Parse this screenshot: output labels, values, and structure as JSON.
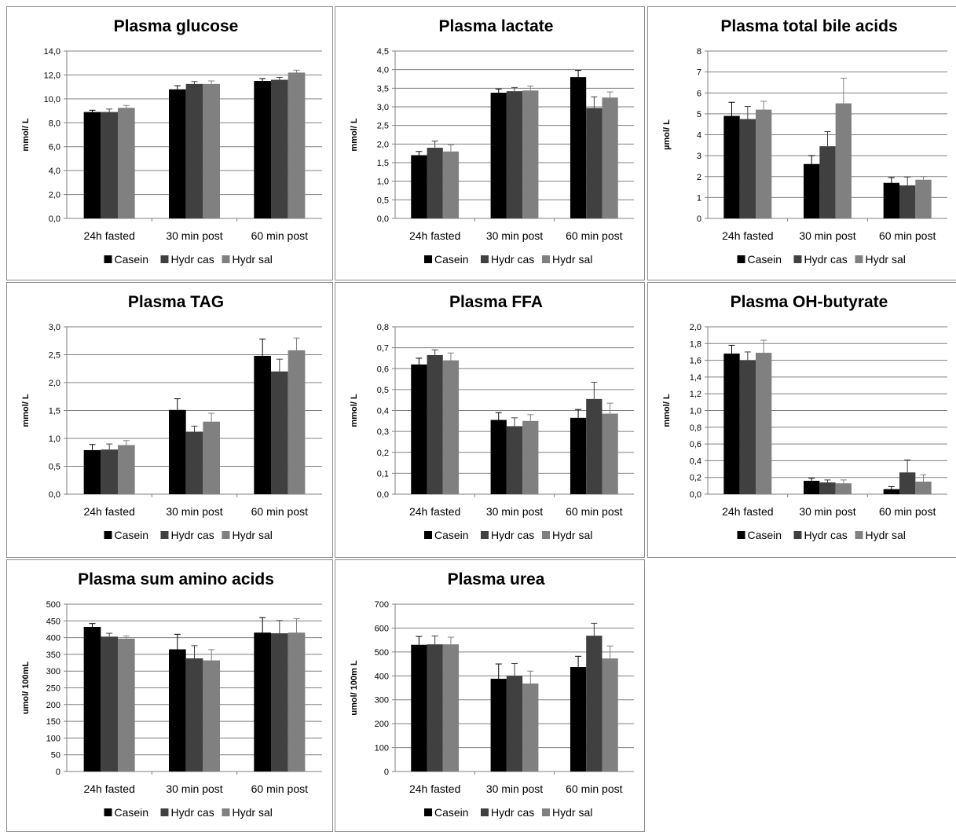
{
  "legend": [
    "Casein",
    "Hydr cas",
    "Hydr sal"
  ],
  "colors": [
    "#000000",
    "#404040",
    "#808080"
  ],
  "chart_data": [
    {
      "type": "bar",
      "title": "Plasma glucose",
      "ylabel": "mmol/ L",
      "categories": [
        "24h fasted",
        "30 min post",
        "60 min post"
      ],
      "ylim": [
        0,
        14
      ],
      "yticks": [
        "0,0",
        "2,0",
        "4,0",
        "6,0",
        "8,0",
        "10,0",
        "12,0",
        "14,0"
      ],
      "series": [
        {
          "name": "Casein",
          "values": [
            8.9,
            10.8,
            11.5
          ],
          "errors": [
            0.15,
            0.3,
            0.2
          ]
        },
        {
          "name": "Hydr cas",
          "values": [
            8.9,
            11.25,
            11.6
          ],
          "errors": [
            0.25,
            0.2,
            0.2
          ]
        },
        {
          "name": "Hydr sal",
          "values": [
            9.25,
            11.25,
            12.2
          ],
          "errors": [
            0.2,
            0.25,
            0.2
          ]
        }
      ]
    },
    {
      "type": "bar",
      "title": "Plasma lactate",
      "ylabel": "mmol/ L",
      "categories": [
        "24h fasted",
        "30 min post",
        "60 min post"
      ],
      "ylim": [
        0,
        4.5
      ],
      "yticks": [
        "0,0",
        "0,5",
        "1,0",
        "1,5",
        "2,0",
        "2,5",
        "3,0",
        "3,5",
        "4,0",
        "4,5"
      ],
      "series": [
        {
          "name": "Casein",
          "values": [
            1.7,
            3.38,
            3.8
          ],
          "errors": [
            0.1,
            0.1,
            0.18
          ]
        },
        {
          "name": "Hydr cas",
          "values": [
            1.9,
            3.42,
            2.97
          ],
          "errors": [
            0.18,
            0.1,
            0.3
          ]
        },
        {
          "name": "Hydr sal",
          "values": [
            1.8,
            3.44,
            3.25
          ],
          "errors": [
            0.18,
            0.12,
            0.15
          ]
        }
      ]
    },
    {
      "type": "bar",
      "title": "Plasma total bile acids",
      "ylabel": "µmol/ L",
      "categories": [
        "24h fasted",
        "30 min post",
        "60 min post"
      ],
      "ylim": [
        0,
        8
      ],
      "yticks": [
        "0",
        "1",
        "2",
        "3",
        "4",
        "5",
        "6",
        "7",
        "8"
      ],
      "series": [
        {
          "name": "Casein",
          "values": [
            4.9,
            2.6,
            1.7
          ],
          "errors": [
            0.65,
            0.4,
            0.25
          ]
        },
        {
          "name": "Hydr cas",
          "values": [
            4.75,
            3.45,
            1.58
          ],
          "errors": [
            0.6,
            0.7,
            0.4
          ]
        },
        {
          "name": "Hydr sal",
          "values": [
            5.2,
            5.5,
            1.85
          ],
          "errors": [
            0.4,
            1.2,
            0.15
          ]
        }
      ]
    },
    {
      "type": "bar",
      "title": "Plasma TAG",
      "ylabel": "mmol/ L",
      "categories": [
        "24h fasted",
        "30 min post",
        "60 min post"
      ],
      "ylim": [
        0,
        3
      ],
      "yticks": [
        "0,0",
        "0,5",
        "1,0",
        "1,5",
        "2,0",
        "2,5",
        "3,0"
      ],
      "series": [
        {
          "name": "Casein",
          "values": [
            0.79,
            1.51,
            2.48
          ],
          "errors": [
            0.1,
            0.2,
            0.3
          ]
        },
        {
          "name": "Hydr cas",
          "values": [
            0.8,
            1.12,
            2.2
          ],
          "errors": [
            0.1,
            0.1,
            0.22
          ]
        },
        {
          "name": "Hydr sal",
          "values": [
            0.88,
            1.3,
            2.58
          ],
          "errors": [
            0.08,
            0.15,
            0.22
          ]
        }
      ]
    },
    {
      "type": "bar",
      "title": "Plasma FFA",
      "ylabel": "mmol/ L",
      "categories": [
        "24h fasted",
        "30 min post",
        "60 min post"
      ],
      "ylim": [
        0,
        0.8
      ],
      "yticks": [
        "0,0",
        "0,1",
        "0,2",
        "0,3",
        "0,4",
        "0,5",
        "0,6",
        "0,7",
        "0,8"
      ],
      "series": [
        {
          "name": "Casein",
          "values": [
            0.62,
            0.355,
            0.365
          ],
          "errors": [
            0.03,
            0.035,
            0.04
          ]
        },
        {
          "name": "Hydr cas",
          "values": [
            0.665,
            0.325,
            0.455
          ],
          "errors": [
            0.025,
            0.04,
            0.08
          ]
        },
        {
          "name": "Hydr sal",
          "values": [
            0.64,
            0.35,
            0.385
          ],
          "errors": [
            0.035,
            0.03,
            0.05
          ]
        }
      ]
    },
    {
      "type": "bar",
      "title": "Plasma OH-butyrate",
      "ylabel": "mmol/ L",
      "categories": [
        "24h fasted",
        "30 min post",
        "60 min post"
      ],
      "ylim": [
        0,
        2
      ],
      "yticks": [
        "0,0",
        "0,2",
        "0,4",
        "0,6",
        "0,8",
        "1,0",
        "1,2",
        "1,4",
        "1,6",
        "1,8",
        "2,0"
      ],
      "series": [
        {
          "name": "Casein",
          "values": [
            1.68,
            0.16,
            0.06
          ],
          "errors": [
            0.1,
            0.03,
            0.03
          ]
        },
        {
          "name": "Hydr cas",
          "values": [
            1.6,
            0.14,
            0.26
          ],
          "errors": [
            0.1,
            0.03,
            0.15
          ]
        },
        {
          "name": "Hydr sal",
          "values": [
            1.69,
            0.13,
            0.15
          ],
          "errors": [
            0.15,
            0.04,
            0.08
          ]
        }
      ]
    },
    {
      "type": "bar",
      "title": "Plasma sum amino acids",
      "ylabel": "umol/ 100mL",
      "categories": [
        "24h fasted",
        "30 min post",
        "60 min post"
      ],
      "ylim": [
        0,
        500
      ],
      "yticks": [
        "0",
        "50",
        "100",
        "150",
        "200",
        "250",
        "300",
        "350",
        "400",
        "450",
        "500"
      ],
      "series": [
        {
          "name": "Casein",
          "values": [
            432,
            365,
            415
          ],
          "errors": [
            10,
            45,
            45
          ]
        },
        {
          "name": "Hydr cas",
          "values": [
            403,
            338,
            413
          ],
          "errors": [
            10,
            38,
            38
          ]
        },
        {
          "name": "Hydr sal",
          "values": [
            397,
            332,
            415
          ],
          "errors": [
            8,
            32,
            42
          ]
        }
      ]
    },
    {
      "type": "bar",
      "title": "Plasma urea",
      "ylabel": "umol/ 100m L",
      "categories": [
        "24h fasted",
        "30 min post",
        "60 min post"
      ],
      "ylim": [
        0,
        700
      ],
      "yticks": [
        "0",
        "100",
        "200",
        "300",
        "400",
        "500",
        "600",
        "700"
      ],
      "series": [
        {
          "name": "Casein",
          "values": [
            530,
            388,
            437
          ],
          "errors": [
            35,
            62,
            45
          ]
        },
        {
          "name": "Hydr cas",
          "values": [
            532,
            400,
            568
          ],
          "errors": [
            35,
            52,
            52
          ]
        },
        {
          "name": "Hydr sal",
          "values": [
            532,
            368,
            473
          ],
          "errors": [
            30,
            52,
            52
          ]
        }
      ]
    }
  ]
}
